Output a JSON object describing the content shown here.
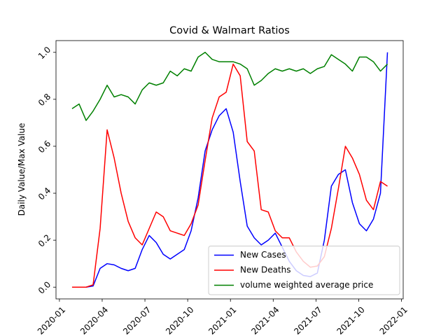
{
  "chart_data": {
    "type": "line",
    "title": "Covid & Walmart Ratios",
    "y_label": "Daily Value/Max Value",
    "x": [
      2020.074,
      2020.115,
      2020.156,
      2020.197,
      2020.238,
      2020.279,
      2020.32,
      2020.361,
      2020.402,
      2020.443,
      2020.484,
      2020.525,
      2020.566,
      2020.607,
      2020.648,
      2020.689,
      2020.73,
      2020.77,
      2020.811,
      2020.852,
      2020.893,
      2020.934,
      2020.975,
      2021.016,
      2021.057,
      2021.098,
      2021.139,
      2021.18,
      2021.221,
      2021.262,
      2021.303,
      2021.344,
      2021.385,
      2021.426,
      2021.467,
      2021.508,
      2021.549,
      2021.59,
      2021.631,
      2021.672,
      2021.713,
      2021.754,
      2021.795,
      2021.836,
      2021.877,
      2021.918
    ],
    "series": [
      {
        "name": "New Cases",
        "color": "#0000ff",
        "values": [
          0,
          0,
          0,
          0.005,
          0.08,
          0.1,
          0.095,
          0.08,
          0.07,
          0.08,
          0.16,
          0.22,
          0.19,
          0.14,
          0.12,
          0.14,
          0.16,
          0.24,
          0.38,
          0.58,
          0.67,
          0.73,
          0.76,
          0.66,
          0.45,
          0.26,
          0.21,
          0.18,
          0.2,
          0.23,
          0.17,
          0.11,
          0.07,
          0.05,
          0.045,
          0.06,
          0.2,
          0.43,
          0.48,
          0.5,
          0.36,
          0.27,
          0.24,
          0.29,
          0.4,
          1.0
        ]
      },
      {
        "name": "New Deaths",
        "color": "#ff0000",
        "values": [
          0,
          0,
          0,
          0.01,
          0.25,
          0.67,
          0.55,
          0.4,
          0.28,
          0.21,
          0.18,
          0.25,
          0.32,
          0.3,
          0.24,
          0.23,
          0.22,
          0.27,
          0.35,
          0.54,
          0.72,
          0.81,
          0.83,
          0.95,
          0.9,
          0.62,
          0.58,
          0.33,
          0.32,
          0.24,
          0.21,
          0.21,
          0.15,
          0.11,
          0.085,
          0.09,
          0.13,
          0.25,
          0.42,
          0.6,
          0.55,
          0.48,
          0.37,
          0.33,
          0.45,
          0.43
        ]
      },
      {
        "name": "volume weighted average price",
        "color": "#008000",
        "values": [
          0.76,
          0.78,
          0.71,
          0.75,
          0.8,
          0.86,
          0.81,
          0.82,
          0.81,
          0.78,
          0.84,
          0.87,
          0.86,
          0.87,
          0.92,
          0.9,
          0.93,
          0.92,
          0.98,
          1.0,
          0.97,
          0.96,
          0.96,
          0.96,
          0.95,
          0.93,
          0.86,
          0.88,
          0.91,
          0.93,
          0.92,
          0.93,
          0.92,
          0.93,
          0.91,
          0.93,
          0.94,
          0.99,
          0.97,
          0.95,
          0.92,
          0.98,
          0.98,
          0.96,
          0.92,
          0.95
        ]
      }
    ],
    "xlim": [
      2019.98,
      2022.01
    ],
    "xticks": [
      {
        "value": 2020.0,
        "label": "2020-01"
      },
      {
        "value": 2020.25,
        "label": "2020-04"
      },
      {
        "value": 2020.5,
        "label": "2020-07"
      },
      {
        "value": 2020.75,
        "label": "2020-10"
      },
      {
        "value": 2021.0,
        "label": "2021-01"
      },
      {
        "value": 2021.25,
        "label": "2021-04"
      },
      {
        "value": 2021.5,
        "label": "2021-07"
      },
      {
        "value": 2021.75,
        "label": "2021-10"
      },
      {
        "value": 2022.0,
        "label": "2022-01"
      }
    ],
    "ylim": [
      -0.05,
      1.05
    ],
    "yticks": [
      {
        "value": 0,
        "label": "0.0"
      },
      0.2,
      0.4,
      0.6,
      0.8,
      {
        "value": 1,
        "label": "1.0"
      }
    ],
    "legend": "lower right",
    "grid": false
  }
}
